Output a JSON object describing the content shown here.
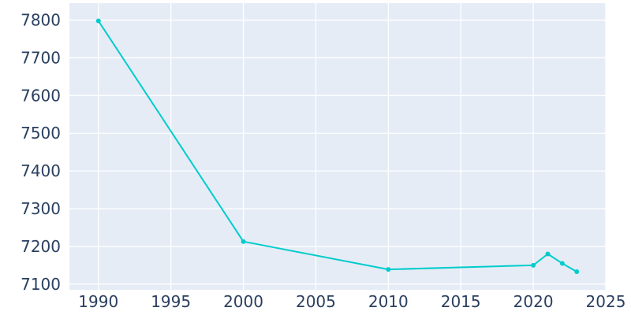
{
  "chart_data": {
    "type": "line",
    "title": "",
    "xlabel": "",
    "ylabel": "",
    "x": [
      1990,
      2000,
      2010,
      2020,
      2021,
      2022,
      2023
    ],
    "series": [
      {
        "values": [
          7798,
          7213,
          7139,
          7150,
          7180,
          7155,
          7133
        ]
      }
    ],
    "xlim": [
      1988,
      2025
    ],
    "ylim": [
      7085,
      7845
    ],
    "x_ticks": [
      1990,
      1995,
      2000,
      2005,
      2010,
      2015,
      2020,
      2025
    ],
    "y_ticks": [
      7100,
      7200,
      7300,
      7400,
      7500,
      7600,
      7700,
      7800
    ],
    "x_tick_labels": [
      "1990",
      "1995",
      "2000",
      "2005",
      "2010",
      "2015",
      "2020",
      "2025"
    ],
    "y_tick_labels": [
      "7100",
      "7200",
      "7300",
      "7400",
      "7500",
      "7600",
      "7700",
      "7800"
    ],
    "grid": true,
    "legend": "none",
    "colors": {
      "plot_background": "#e5ecf6",
      "grid": "#ffffff",
      "line": "#00cccc",
      "text": "#2a3f5f"
    }
  }
}
